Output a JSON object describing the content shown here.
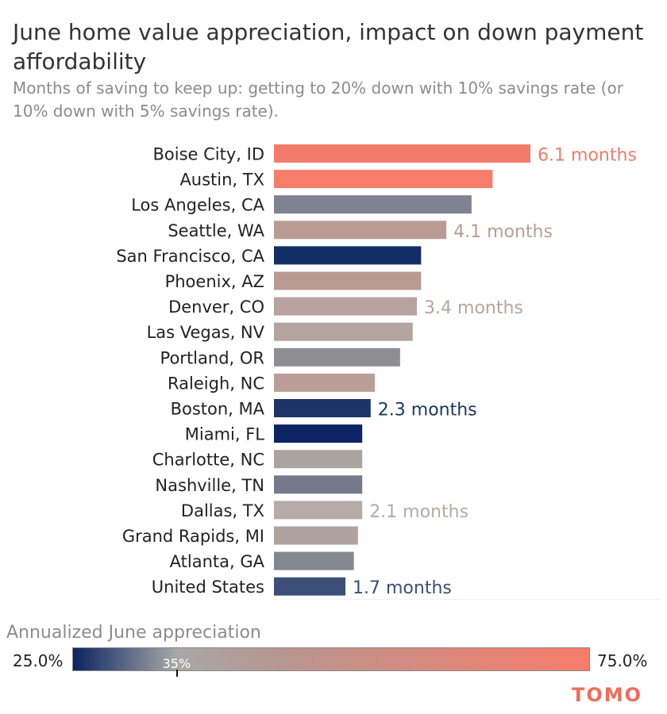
{
  "chart_data": {
    "type": "bar",
    "orientation": "horizontal",
    "title": "June home value appreciation, impact on down payment affordability",
    "subtitle": "Months of saving to keep up: getting to 20% down with 10% savings rate (or 10% down with 5% savings rate).",
    "categories": [
      "Boise City, ID",
      "Austin, TX",
      "Los Angeles, CA",
      "Seattle, WA",
      "San Francisco, CA",
      "Phoenix, AZ",
      "Denver, CO",
      "Las Vegas, NV",
      "Portland, OR",
      "Raleigh, NC",
      "Boston, MA",
      "Miami, FL",
      "Charlotte, NC",
      "Nashville, TN",
      "Dallas, TX",
      "Grand Rapids, MI",
      "Atlanta, GA",
      "United States"
    ],
    "values": [
      6.1,
      5.2,
      4.7,
      4.1,
      3.5,
      3.5,
      3.4,
      3.3,
      3.0,
      2.4,
      2.3,
      2.1,
      2.1,
      2.1,
      2.1,
      2.0,
      1.9,
      1.7
    ],
    "unit": "months",
    "bar_colors": [
      "#f37b6c",
      "#f87c6a",
      "#7f8391",
      "#bb9c95",
      "#112e66",
      "#bc9a94",
      "#b8a3a0",
      "#b4a4a0",
      "#8e8e93",
      "#bc9e98",
      "#1c3566",
      "#0c2461",
      "#aba39f",
      "#76798c",
      "#b6aba6",
      "#afa39f",
      "#85868f",
      "#3b4f78"
    ],
    "data_labels": [
      {
        "index": 0,
        "text": "6.1 months",
        "color": "#f37b6c"
      },
      {
        "index": 3,
        "text": "4.1 months",
        "color": "#bb9c95"
      },
      {
        "index": 6,
        "text": "3.4 months",
        "color": "#b8a3a0"
      },
      {
        "index": 10,
        "text": "2.3 months",
        "color": "#1c3566"
      },
      {
        "index": 14,
        "text": "2.1 months",
        "color": "#b6aba6"
      },
      {
        "index": 17,
        "text": "1.7 months",
        "color": "#3b4f78"
      }
    ],
    "xlim": [
      0,
      6.1
    ],
    "legend": {
      "title": "Annualized June appreciation",
      "min_label": "25.0%",
      "max_label": "75.0%",
      "marker_label": "35%",
      "marker_value": 35,
      "range": [
        25,
        75
      ]
    }
  },
  "brand": "TOMO"
}
